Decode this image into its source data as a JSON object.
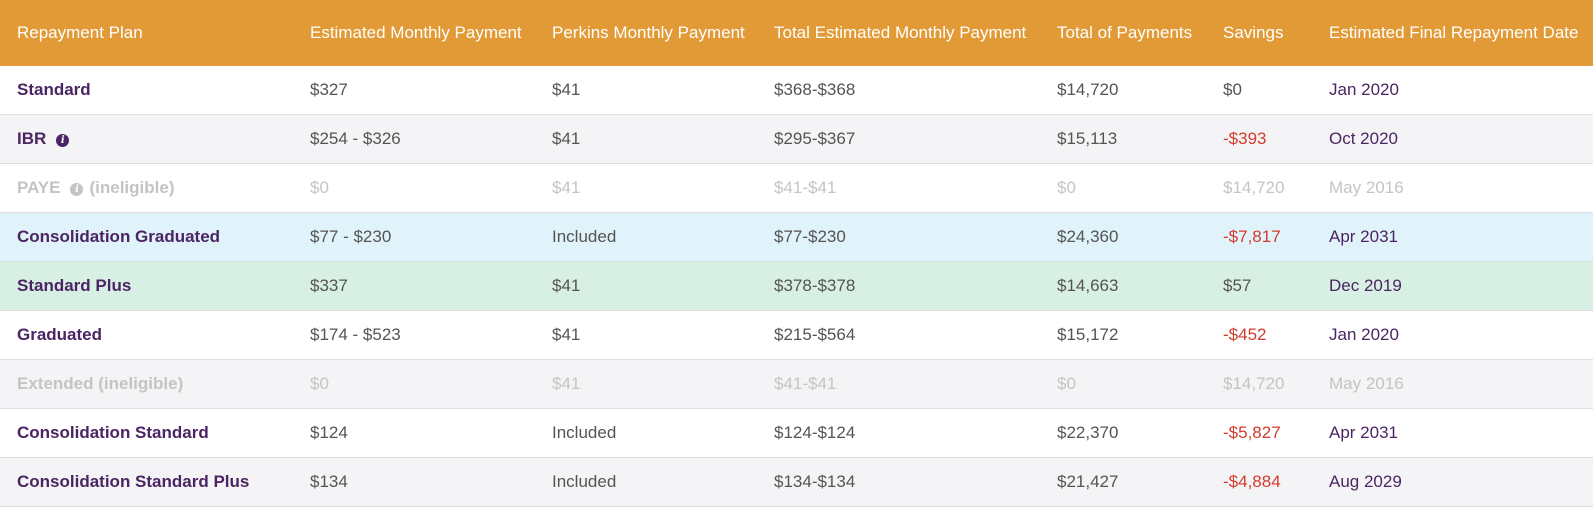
{
  "headers": [
    "Repayment Plan",
    "Estimated Monthly Payment",
    "Perkins Monthly Payment",
    "Total Estimated Monthly Payment",
    "Total of Payments",
    "Savings",
    "Estimated Final Repayment Date"
  ],
  "rows": [
    {
      "plan": "Standard",
      "monthly": "$327",
      "perkins": "$41",
      "total_monthly": "$368-$368",
      "total": "$14,720",
      "savings": "$0",
      "date": "Jan 2020"
    },
    {
      "plan": "IBR",
      "monthly": "$254 - $326",
      "perkins": "$41",
      "total_monthly": "$295-$367",
      "total": "$15,113",
      "savings": "-$393",
      "date": "Oct 2020"
    },
    {
      "plan": "PAYE",
      "tag": "(ineligible)",
      "monthly": "$0",
      "perkins": "$41",
      "total_monthly": "$41-$41",
      "total": "$0",
      "savings": "$14,720",
      "date": "May 2016"
    },
    {
      "plan": "Consolidation Graduated",
      "monthly": "$77 - $230",
      "perkins": "Included",
      "total_monthly": "$77-$230",
      "total": "$24,360",
      "savings": "-$7,817",
      "date": "Apr 2031"
    },
    {
      "plan": "Standard Plus",
      "monthly": "$337",
      "perkins": "$41",
      "total_monthly": "$378-$378",
      "total": "$14,663",
      "savings": "$57",
      "date": "Dec 2019"
    },
    {
      "plan": "Graduated",
      "monthly": "$174 - $523",
      "perkins": "$41",
      "total_monthly": "$215-$564",
      "total": "$15,172",
      "savings": "-$452",
      "date": "Jan 2020"
    },
    {
      "plan": "Extended (ineligible)",
      "monthly": "$0",
      "perkins": "$41",
      "total_monthly": "$41-$41",
      "total": "$0",
      "savings": "$14,720",
      "date": "May 2016"
    },
    {
      "plan": "Consolidation Standard",
      "monthly": "$124",
      "perkins": "Included",
      "total_monthly": "$124-$124",
      "total": "$22,370",
      "savings": "-$5,827",
      "date": "Apr 2031"
    },
    {
      "plan": "Consolidation Standard Plus",
      "monthly": "$134",
      "perkins": "Included",
      "total_monthly": "$134-$134",
      "total": "$21,427",
      "savings": "-$4,884",
      "date": "Aug 2029"
    }
  ],
  "info_icon": {
    "name": "info-icon",
    "glyph": "i"
  },
  "colors": {
    "header_bg": "#e19a35",
    "plan_text": "#4b2563",
    "negative": "#d33b2c",
    "ineligible": "#c4c4c4",
    "highlight_blue": "#e1f3fa",
    "highlight_green": "#d8f0e3"
  }
}
